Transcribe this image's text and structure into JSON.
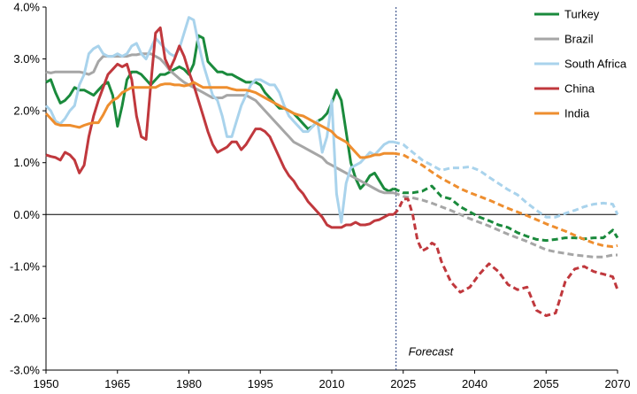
{
  "chart_data": {
    "type": "line",
    "x_range": [
      1950,
      2070
    ],
    "y_range": [
      -3.0,
      4.0
    ],
    "x_ticks": [
      {
        "value": 1950,
        "label": "1950"
      },
      {
        "value": 1965,
        "label": "1965"
      },
      {
        "value": 1980,
        "label": "1980"
      },
      {
        "value": 1995,
        "label": "1995"
      },
      {
        "value": 2010,
        "label": "2010"
      },
      {
        "value": 2025,
        "label": "2025"
      },
      {
        "value": 2040,
        "label": "2040"
      },
      {
        "value": 2055,
        "label": "2055"
      },
      {
        "value": 2070,
        "label": "2070"
      }
    ],
    "y_ticks": [
      {
        "value": 4.0,
        "label": "4.0%"
      },
      {
        "value": 3.0,
        "label": "3.0%"
      },
      {
        "value": 2.0,
        "label": "2.0%"
      },
      {
        "value": 1.0,
        "label": "1.0%"
      },
      {
        "value": 0.0,
        "label": "0.0%"
      },
      {
        "value": -1.0,
        "label": "-1.0%"
      },
      {
        "value": -2.0,
        "label": "-2.0%"
      },
      {
        "value": -3.0,
        "label": "-3.0%"
      }
    ],
    "forecast_start": 2023.5,
    "annotation": "Forecast",
    "grid": false,
    "legend_position": "top-right",
    "series": [
      {
        "name": "Turkey",
        "color": "#1a8a3c",
        "x": [
          1950,
          1951,
          1952,
          1953,
          1954,
          1955,
          1956,
          1957,
          1958,
          1959,
          1960,
          1961,
          1962,
          1963,
          1964,
          1965,
          1966,
          1967,
          1968,
          1969,
          1970,
          1971,
          1972,
          1973,
          1974,
          1975,
          1976,
          1977,
          1978,
          1979,
          1980,
          1981,
          1982,
          1983,
          1984,
          1985,
          1986,
          1987,
          1988,
          1989,
          1990,
          1991,
          1992,
          1993,
          1994,
          1995,
          1996,
          1997,
          1998,
          1999,
          2000,
          2001,
          2002,
          2003,
          2004,
          2005,
          2006,
          2007,
          2008,
          2009,
          2010,
          2011,
          2012,
          2013,
          2014,
          2015,
          2016,
          2017,
          2018,
          2019,
          2020,
          2021,
          2022,
          2023
        ],
        "y": [
          2.55,
          2.6,
          2.35,
          2.15,
          2.2,
          2.3,
          2.45,
          2.4,
          2.4,
          2.35,
          2.3,
          2.4,
          2.5,
          2.55,
          2.3,
          1.7,
          2.1,
          2.6,
          2.75,
          2.75,
          2.7,
          2.6,
          2.5,
          2.6,
          2.7,
          2.7,
          2.75,
          2.8,
          2.85,
          2.8,
          2.7,
          2.9,
          3.45,
          3.4,
          2.95,
          2.85,
          2.75,
          2.75,
          2.7,
          2.7,
          2.65,
          2.6,
          2.55,
          2.55,
          2.55,
          2.5,
          2.35,
          2.25,
          2.15,
          2.05,
          2.05,
          2.0,
          1.95,
          1.85,
          1.75,
          1.65,
          1.7,
          1.8,
          1.85,
          1.95,
          2.15,
          2.4,
          2.2,
          1.6,
          1.0,
          0.7,
          0.5,
          0.6,
          0.75,
          0.8,
          0.65,
          0.5,
          0.45,
          0.5
        ]
      },
      {
        "name": "Turkey forecast",
        "color": "#1a8a3c",
        "dashed": true,
        "x": [
          2023,
          2025,
          2027,
          2029,
          2031,
          2033,
          2035,
          2037,
          2039,
          2041,
          2043,
          2045,
          2047,
          2049,
          2051,
          2053,
          2055,
          2057,
          2059,
          2061,
          2063,
          2065,
          2067,
          2069,
          2070
        ],
        "y": [
          0.5,
          0.42,
          0.42,
          0.45,
          0.55,
          0.35,
          0.3,
          0.15,
          0.05,
          -0.05,
          -0.12,
          -0.2,
          -0.25,
          -0.35,
          -0.42,
          -0.48,
          -0.5,
          -0.48,
          -0.45,
          -0.45,
          -0.47,
          -0.45,
          -0.45,
          -0.3,
          -0.45
        ]
      },
      {
        "name": "Brazil",
        "color": "#a6a6a6",
        "x": [
          1950,
          1951,
          1952,
          1953,
          1954,
          1955,
          1956,
          1957,
          1958,
          1959,
          1960,
          1961,
          1962,
          1963,
          1964,
          1965,
          1966,
          1967,
          1968,
          1969,
          1970,
          1971,
          1972,
          1973,
          1974,
          1975,
          1976,
          1977,
          1978,
          1979,
          1980,
          1981,
          1982,
          1983,
          1984,
          1985,
          1986,
          1987,
          1988,
          1989,
          1990,
          1991,
          1992,
          1993,
          1994,
          1995,
          1996,
          1997,
          1998,
          1999,
          2000,
          2001,
          2002,
          2003,
          2004,
          2005,
          2006,
          2007,
          2008,
          2009,
          2010,
          2011,
          2012,
          2013,
          2014,
          2015,
          2016,
          2017,
          2018,
          2019,
          2020,
          2021,
          2022,
          2023
        ],
        "y": [
          2.75,
          2.73,
          2.75,
          2.75,
          2.75,
          2.75,
          2.75,
          2.75,
          2.73,
          2.7,
          2.75,
          2.95,
          3.05,
          3.05,
          3.05,
          3.05,
          3.05,
          3.05,
          3.08,
          3.08,
          3.1,
          3.1,
          3.1,
          3.05,
          3.0,
          2.9,
          2.78,
          2.7,
          2.62,
          2.55,
          2.5,
          2.45,
          2.4,
          2.35,
          2.3,
          2.25,
          2.25,
          2.25,
          2.3,
          2.3,
          2.3,
          2.3,
          2.3,
          2.25,
          2.2,
          2.1,
          2.0,
          1.9,
          1.8,
          1.7,
          1.6,
          1.5,
          1.4,
          1.35,
          1.3,
          1.25,
          1.2,
          1.15,
          1.1,
          1.0,
          0.95,
          0.9,
          0.85,
          0.8,
          0.75,
          0.7,
          0.65,
          0.6,
          0.55,
          0.5,
          0.45,
          0.42,
          0.42,
          0.42
        ]
      },
      {
        "name": "Brazil forecast",
        "color": "#a6a6a6",
        "dashed": true,
        "x": [
          2023,
          2025,
          2027,
          2029,
          2031,
          2033,
          2035,
          2037,
          2039,
          2041,
          2043,
          2045,
          2047,
          2049,
          2051,
          2053,
          2055,
          2057,
          2059,
          2061,
          2063,
          2065,
          2067,
          2069,
          2070
        ],
        "y": [
          0.42,
          0.35,
          0.32,
          0.28,
          0.22,
          0.15,
          0.08,
          0.0,
          -0.08,
          -0.15,
          -0.22,
          -0.3,
          -0.38,
          -0.45,
          -0.52,
          -0.6,
          -0.68,
          -0.72,
          -0.75,
          -0.78,
          -0.8,
          -0.82,
          -0.82,
          -0.78,
          -0.78
        ]
      },
      {
        "name": "South Africa",
        "color": "#a9d3ec",
        "x": [
          1950,
          1951,
          1952,
          1953,
          1954,
          1955,
          1956,
          1957,
          1958,
          1959,
          1960,
          1961,
          1962,
          1963,
          1964,
          1965,
          1966,
          1967,
          1968,
          1969,
          1970,
          1971,
          1972,
          1973,
          1974,
          1975,
          1976,
          1977,
          1978,
          1979,
          1980,
          1981,
          1982,
          1983,
          1984,
          1985,
          1986,
          1987,
          1988,
          1989,
          1990,
          1991,
          1992,
          1993,
          1994,
          1995,
          1996,
          1997,
          1998,
          1999,
          2000,
          2001,
          2002,
          2003,
          2004,
          2005,
          2006,
          2007,
          2008,
          2009,
          2010,
          2011,
          2012,
          2013,
          2014,
          2015,
          2016,
          2017,
          2018,
          2019,
          2020,
          2021,
          2022,
          2023
        ],
        "y": [
          2.1,
          2.0,
          1.8,
          1.75,
          1.85,
          2.0,
          2.1,
          2.5,
          2.7,
          3.1,
          3.2,
          3.25,
          3.1,
          3.05,
          3.05,
          3.1,
          3.05,
          3.1,
          3.25,
          3.3,
          3.1,
          3.0,
          3.2,
          3.4,
          3.3,
          3.2,
          3.1,
          3.05,
          3.2,
          3.5,
          3.8,
          3.75,
          3.3,
          2.9,
          2.6,
          2.3,
          2.2,
          1.9,
          1.5,
          1.5,
          1.8,
          2.1,
          2.3,
          2.5,
          2.6,
          2.6,
          2.55,
          2.5,
          2.5,
          2.35,
          2.1,
          1.9,
          1.8,
          1.7,
          1.6,
          1.6,
          1.7,
          1.8,
          1.2,
          1.5,
          2.2,
          0.4,
          -0.15,
          0.6,
          0.9,
          0.95,
          1.0,
          1.1,
          1.2,
          1.15,
          1.25,
          1.35,
          1.4,
          1.4
        ]
      },
      {
        "name": "South Africa forecast",
        "color": "#a9d3ec",
        "dashed": true,
        "x": [
          2023,
          2025,
          2027,
          2029,
          2031,
          2033,
          2035,
          2037,
          2039,
          2041,
          2043,
          2045,
          2047,
          2049,
          2051,
          2053,
          2055,
          2057,
          2059,
          2061,
          2063,
          2065,
          2067,
          2069,
          2070
        ],
        "y": [
          1.4,
          1.35,
          1.2,
          1.05,
          0.95,
          0.85,
          0.9,
          0.9,
          0.92,
          0.85,
          0.72,
          0.6,
          0.48,
          0.38,
          0.22,
          0.08,
          -0.05,
          -0.05,
          0.02,
          0.08,
          0.15,
          0.2,
          0.22,
          0.2,
          0.0
        ]
      },
      {
        "name": "China",
        "color": "#c0383d",
        "x": [
          1950,
          1951,
          1952,
          1953,
          1954,
          1955,
          1956,
          1957,
          1958,
          1959,
          1960,
          1961,
          1962,
          1963,
          1964,
          1965,
          1966,
          1967,
          1968,
          1969,
          1970,
          1971,
          1972,
          1973,
          1974,
          1975,
          1976,
          1977,
          1978,
          1979,
          1980,
          1981,
          1982,
          1983,
          1984,
          1985,
          1986,
          1987,
          1988,
          1989,
          1990,
          1991,
          1992,
          1993,
          1994,
          1995,
          1996,
          1997,
          1998,
          1999,
          2000,
          2001,
          2002,
          2003,
          2004,
          2005,
          2006,
          2007,
          2008,
          2009,
          2010,
          2011,
          2012,
          2013,
          2014,
          2015,
          2016,
          2017,
          2018,
          2019,
          2020,
          2021,
          2022,
          2023
        ],
        "y": [
          1.15,
          1.12,
          1.1,
          1.05,
          1.2,
          1.15,
          1.05,
          0.8,
          0.95,
          1.5,
          1.9,
          2.2,
          2.45,
          2.7,
          2.8,
          2.9,
          2.85,
          2.9,
          2.6,
          1.9,
          1.5,
          1.45,
          2.5,
          3.5,
          3.6,
          3.0,
          2.8,
          3.0,
          3.25,
          3.05,
          2.75,
          2.5,
          2.2,
          1.9,
          1.6,
          1.35,
          1.2,
          1.25,
          1.3,
          1.4,
          1.4,
          1.25,
          1.35,
          1.5,
          1.65,
          1.65,
          1.6,
          1.5,
          1.3,
          1.1,
          0.9,
          0.75,
          0.65,
          0.5,
          0.4,
          0.25,
          0.15,
          0.05,
          -0.05,
          -0.2,
          -0.25,
          -0.25,
          -0.25,
          -0.2,
          -0.2,
          -0.15,
          -0.2,
          -0.2,
          -0.18,
          -0.12,
          -0.1,
          -0.05,
          0.0,
          0.0
        ]
      },
      {
        "name": "China forecast",
        "color": "#c0383d",
        "dashed": true,
        "x": [
          2023,
          2024,
          2025,
          2026,
          2027,
          2028,
          2029,
          2030,
          2031,
          2032,
          2033,
          2035,
          2037,
          2039,
          2041,
          2043,
          2045,
          2047,
          2049,
          2051,
          2053,
          2055,
          2057,
          2059,
          2061,
          2063,
          2065,
          2067,
          2069,
          2070
        ],
        "y": [
          0.0,
          0.1,
          0.3,
          0.3,
          0.0,
          -0.5,
          -0.7,
          -0.65,
          -0.55,
          -0.6,
          -0.9,
          -1.3,
          -1.5,
          -1.4,
          -1.15,
          -0.95,
          -1.1,
          -1.35,
          -1.45,
          -1.4,
          -1.85,
          -1.95,
          -1.9,
          -1.3,
          -1.05,
          -1.0,
          -1.1,
          -1.15,
          -1.2,
          -1.45
        ]
      },
      {
        "name": "India",
        "color": "#ee8e2f",
        "x": [
          1950,
          1951,
          1952,
          1953,
          1954,
          1955,
          1956,
          1957,
          1958,
          1959,
          1960,
          1961,
          1962,
          1963,
          1964,
          1965,
          1966,
          1967,
          1968,
          1969,
          1970,
          1971,
          1972,
          1973,
          1974,
          1975,
          1976,
          1977,
          1978,
          1979,
          1980,
          1981,
          1982,
          1983,
          1984,
          1985,
          1986,
          1987,
          1988,
          1989,
          1990,
          1991,
          1992,
          1993,
          1994,
          1995,
          1996,
          1997,
          1998,
          1999,
          2000,
          2001,
          2002,
          2003,
          2004,
          2005,
          2006,
          2007,
          2008,
          2009,
          2010,
          2011,
          2012,
          2013,
          2014,
          2015,
          2016,
          2017,
          2018,
          2019,
          2020,
          2021,
          2022,
          2023
        ],
        "y": [
          1.95,
          1.85,
          1.75,
          1.72,
          1.72,
          1.72,
          1.7,
          1.68,
          1.72,
          1.75,
          1.77,
          1.77,
          1.92,
          2.1,
          2.2,
          2.25,
          2.35,
          2.4,
          2.45,
          2.45,
          2.45,
          2.45,
          2.45,
          2.45,
          2.5,
          2.52,
          2.52,
          2.5,
          2.5,
          2.48,
          2.5,
          2.55,
          2.5,
          2.45,
          2.45,
          2.45,
          2.45,
          2.45,
          2.45,
          2.42,
          2.4,
          2.4,
          2.4,
          2.38,
          2.35,
          2.3,
          2.25,
          2.2,
          2.15,
          2.1,
          2.05,
          2.0,
          1.95,
          1.92,
          1.9,
          1.85,
          1.8,
          1.75,
          1.7,
          1.65,
          1.6,
          1.5,
          1.45,
          1.4,
          1.3,
          1.2,
          1.1,
          1.1,
          1.12,
          1.15,
          1.15,
          1.18,
          1.18,
          1.18
        ]
      },
      {
        "name": "India forecast",
        "color": "#ee8e2f",
        "dashed": true,
        "x": [
          2023,
          2025,
          2027,
          2029,
          2031,
          2033,
          2035,
          2037,
          2039,
          2041,
          2043,
          2045,
          2047,
          2049,
          2051,
          2053,
          2055,
          2057,
          2059,
          2061,
          2063,
          2065,
          2067,
          2069,
          2070
        ],
        "y": [
          1.18,
          1.15,
          1.05,
          0.95,
          0.82,
          0.7,
          0.6,
          0.5,
          0.42,
          0.35,
          0.28,
          0.2,
          0.12,
          0.05,
          -0.02,
          -0.1,
          -0.18,
          -0.25,
          -0.32,
          -0.4,
          -0.48,
          -0.55,
          -0.6,
          -0.62,
          -0.6
        ]
      }
    ],
    "legend": [
      {
        "label": "Turkey",
        "color": "#1a8a3c"
      },
      {
        "label": "Brazil",
        "color": "#a6a6a6"
      },
      {
        "label": "South Africa",
        "color": "#a9d3ec"
      },
      {
        "label": "China",
        "color": "#c0383d"
      },
      {
        "label": "India",
        "color": "#ee8e2f"
      }
    ]
  }
}
